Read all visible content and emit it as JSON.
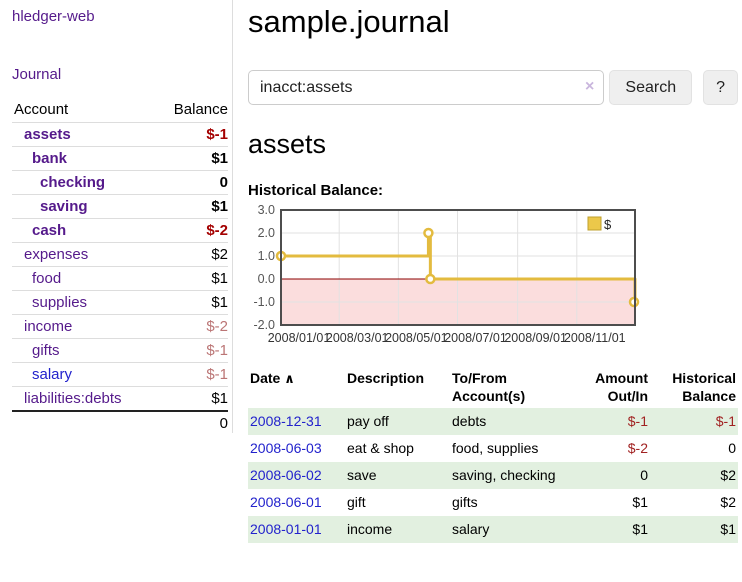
{
  "app": {
    "brand": "hledger-web"
  },
  "sidebar": {
    "journal_label": "Journal",
    "accounts": {
      "header_account": "Account",
      "header_balance": "Balance",
      "rows": [
        {
          "name": "assets",
          "indent": 1,
          "balance": "$-1",
          "bold": true,
          "neg": "strong"
        },
        {
          "name": "bank",
          "indent": 2,
          "balance": "$1",
          "bold": true
        },
        {
          "name": "checking",
          "indent": 3,
          "balance": "0",
          "bold": true
        },
        {
          "name": "saving",
          "indent": 3,
          "balance": "$1",
          "bold": true
        },
        {
          "name": "cash",
          "indent": 2,
          "balance": "$-2",
          "bold": true,
          "neg": "strong"
        },
        {
          "name": "expenses",
          "indent": 1,
          "balance": "$2"
        },
        {
          "name": "food",
          "indent": 2,
          "balance": "$1"
        },
        {
          "name": "supplies",
          "indent": 2,
          "balance": "$1"
        },
        {
          "name": "income",
          "indent": 1,
          "balance": "$-2",
          "neg": "weak"
        },
        {
          "name": "gifts",
          "indent": 2,
          "balance": "$-1",
          "neg": "weak"
        },
        {
          "name": "salary",
          "indent": 2,
          "balance": "$-1",
          "neg": "weak",
          "blue": true
        },
        {
          "name": "liabilities:debts",
          "indent": 1,
          "balance": "$1"
        }
      ],
      "total": "0"
    }
  },
  "main": {
    "title": "sample.journal",
    "account_title": "assets",
    "chart_heading": "Historical Balance:"
  },
  "search": {
    "value": "inacct:assets",
    "clear_glyph": "×",
    "search_label": "Search",
    "help_label": "?"
  },
  "chart_data": {
    "type": "line",
    "style": "step",
    "title": "Historical Balance",
    "legend": [
      {
        "label": "$",
        "color": "#ecc84a"
      }
    ],
    "xlim": [
      0,
      365
    ],
    "ylim": [
      -2,
      3
    ],
    "xticks": [
      {
        "label": "2008/01/01",
        "x": 0
      },
      {
        "label": "2008/03/01",
        "x": 60
      },
      {
        "label": "2008/05/01",
        "x": 121
      },
      {
        "label": "2008/07/01",
        "x": 182
      },
      {
        "label": "2008/09/01",
        "x": 244
      },
      {
        "label": "2008/11/01",
        "x": 305
      }
    ],
    "yticks": [
      {
        "label": "3.0",
        "v": 3
      },
      {
        "label": "2.0",
        "v": 2
      },
      {
        "label": "1.0",
        "v": 1
      },
      {
        "label": "0.0",
        "v": 0
      },
      {
        "label": "-1.0",
        "v": -1
      },
      {
        "label": "-2.0",
        "v": -2
      }
    ],
    "series": [
      {
        "name": "$",
        "points": [
          {
            "date": "2008-01-01",
            "x": 0,
            "y": 1,
            "marker": true
          },
          {
            "date": "2008-06-01",
            "x": 152,
            "y": 2,
            "marker": true
          },
          {
            "date": "2008-06-02",
            "x": 153,
            "y": 2,
            "marker": false
          },
          {
            "date": "2008-06-03",
            "x": 154,
            "y": 0,
            "marker": true
          },
          {
            "date": "2008-12-31",
            "x": 365,
            "y": -1,
            "marker": true
          }
        ]
      }
    ],
    "colors": {
      "line": "#e3bb3f",
      "marker_fill": "#ffffff",
      "negative_fill": "#fbdddd",
      "zero_line": "#8b0000",
      "grid": "#e2e2e2",
      "border": "#4d4d4d"
    }
  },
  "register": {
    "headers": {
      "date": "Date",
      "sort_glyph": "∧",
      "description": "Description",
      "accounts": "To/From Account(s)",
      "amount": "Amount Out/In",
      "balance": "Historical Balance"
    },
    "rows": [
      {
        "date": "2008-12-31",
        "description": "pay off",
        "accounts": "debts",
        "amount": "$-1",
        "balance": "$-1"
      },
      {
        "date": "2008-06-03",
        "description": "eat & shop",
        "accounts": "food, supplies",
        "amount": "$-2",
        "balance": "0"
      },
      {
        "date": "2008-06-02",
        "description": "save",
        "accounts": "saving, checking",
        "amount": "0",
        "balance": "$2"
      },
      {
        "date": "2008-06-01",
        "description": "gift",
        "accounts": "gifts",
        "amount": "$1",
        "balance": "$2"
      },
      {
        "date": "2008-01-01",
        "description": "income",
        "accounts": "salary",
        "amount": "$1",
        "balance": "$1"
      }
    ]
  }
}
